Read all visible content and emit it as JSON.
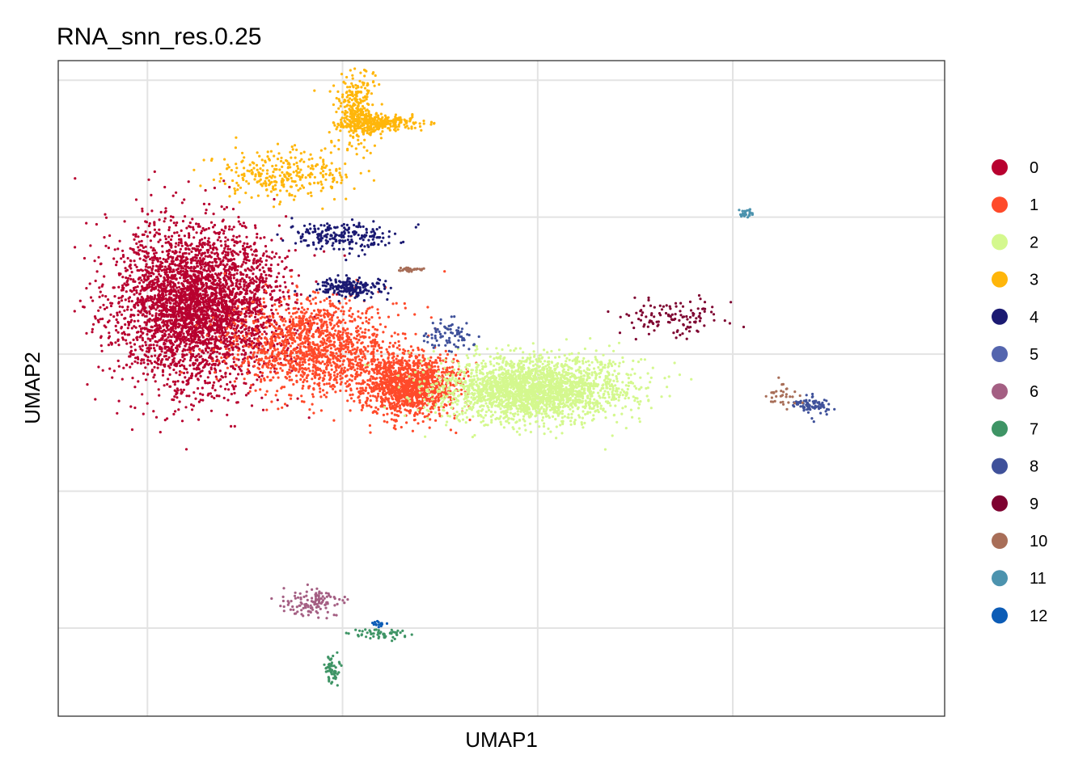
{
  "chart_data": {
    "type": "scatter",
    "title": "RNA_snn_res.0.25",
    "xlabel": "UMAP1",
    "ylabel": "UMAP2",
    "xlim": [
      -12.2,
      19.6
    ],
    "ylim": [
      -19.5,
      14.0
    ],
    "grid": true,
    "x_ticks": [
      -9,
      -2,
      5,
      12
    ],
    "y_ticks": [
      13,
      6,
      -1,
      -8,
      -15
    ],
    "tick_labels_shown": false,
    "legend_position": "right",
    "clusters": [
      {
        "name": "0",
        "color": "#B8002F",
        "n": 3600,
        "blobs": [
          {
            "cx": -7.2,
            "cy": 1.5,
            "sx": 2.4,
            "sy": 3.3
          }
        ]
      },
      {
        "name": "1",
        "color": "#FF4A2A",
        "n": 2600,
        "blobs": [
          {
            "cx": -3.0,
            "cy": -0.6,
            "sx": 2.3,
            "sy": 2.0
          },
          {
            "cx": 0.4,
            "cy": -2.6,
            "sx": 1.4,
            "sy": 1.3
          }
        ]
      },
      {
        "name": "2",
        "color": "#D4F88E",
        "n": 2400,
        "blobs": [
          {
            "cx": 4.8,
            "cy": -2.8,
            "sx": 2.7,
            "sy": 1.3
          }
        ]
      },
      {
        "name": "3",
        "color": "#FFB60A",
        "n": 900,
        "blobs": [
          {
            "cx": -4.0,
            "cy": 8.2,
            "sx": 2.0,
            "sy": 1.0
          },
          {
            "cx": -1.5,
            "cy": 11.6,
            "sx": 0.6,
            "sy": 1.5
          },
          {
            "cx": -0.7,
            "cy": 10.8,
            "sx": 1.2,
            "sy": 0.3
          }
        ]
      },
      {
        "name": "4",
        "color": "#1B1A72",
        "n": 420,
        "blobs": [
          {
            "cx": -2.0,
            "cy": 5.0,
            "sx": 1.5,
            "sy": 0.6
          },
          {
            "cx": -1.7,
            "cy": 2.4,
            "sx": 0.9,
            "sy": 0.4
          }
        ]
      },
      {
        "name": "5",
        "color": "#5465AE",
        "n": 0,
        "blobs": []
      },
      {
        "name": "6",
        "color": "#A45F83",
        "n": 120,
        "blobs": [
          {
            "cx": -3.0,
            "cy": -13.7,
            "sx": 0.9,
            "sy": 0.6
          }
        ]
      },
      {
        "name": "7",
        "color": "#3E9465",
        "n": 110,
        "blobs": [
          {
            "cx": -0.7,
            "cy": -15.3,
            "sx": 1.0,
            "sy": 0.2
          },
          {
            "cx": -2.4,
            "cy": -17.1,
            "sx": 0.2,
            "sy": 0.7
          }
        ]
      },
      {
        "name": "8",
        "color": "#3F519A",
        "n": 160,
        "blobs": [
          {
            "cx": 1.8,
            "cy": 0.0,
            "sx": 0.7,
            "sy": 0.7
          },
          {
            "cx": 14.8,
            "cy": -3.6,
            "sx": 0.6,
            "sy": 0.4
          }
        ]
      },
      {
        "name": "9",
        "color": "#7E0230",
        "n": 120,
        "blobs": [
          {
            "cx": 9.8,
            "cy": 0.8,
            "sx": 1.6,
            "sy": 0.8
          }
        ]
      },
      {
        "name": "10",
        "color": "#A86E58",
        "n": 70,
        "blobs": [
          {
            "cx": 13.8,
            "cy": -3.0,
            "sx": 0.5,
            "sy": 0.5
          },
          {
            "cx": 0.4,
            "cy": 3.3,
            "sx": 0.3,
            "sy": 0.1
          }
        ]
      },
      {
        "name": "11",
        "color": "#4C93AE",
        "n": 30,
        "blobs": [
          {
            "cx": 12.5,
            "cy": 6.2,
            "sx": 0.2,
            "sy": 0.2
          }
        ]
      },
      {
        "name": "12",
        "color": "#0C5CB6",
        "n": 15,
        "blobs": [
          {
            "cx": -0.7,
            "cy": -14.8,
            "sx": 0.2,
            "sy": 0.1
          }
        ]
      }
    ]
  }
}
